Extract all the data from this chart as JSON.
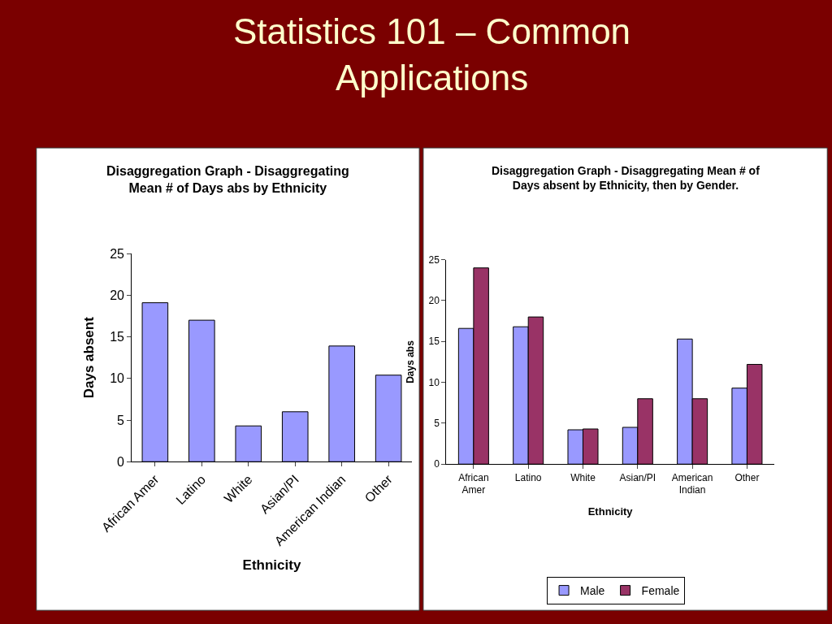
{
  "chart_data": [
    {
      "type": "bar",
      "title": "Disaggregation Graph - Disaggregating\nMean # of Days abs by Ethnicity",
      "annotations": [
        "Statistics 101 – Common\nApplications"
      ],
      "xlabel": "Ethnicity",
      "ylabel": "Days absent",
      "categories": [
        "African Amer",
        "Latino",
        "White",
        "Asian/PI",
        "American Indian",
        "Other"
      ],
      "values": [
        19.1,
        17.0,
        4.3,
        6.0,
        13.9,
        10.4
      ],
      "color": "#9999ff",
      "ylim": [
        0,
        25
      ],
      "yticks": [
        0,
        5,
        10,
        15,
        20,
        25
      ],
      "legend": false
    },
    {
      "type": "bar",
      "title": "Disaggregation Graph - Disaggregating Mean # of\nDays absent by Ethnicity, then by Gender.",
      "xlabel": "Ethnicity",
      "ylabel": "Days abs",
      "categories": [
        "African Amer",
        "Latino",
        "White",
        "Asian/PI",
        "American Indian",
        "Other"
      ],
      "series": [
        {
          "name": "Male",
          "color": "#9999ff",
          "values": [
            16.6,
            16.8,
            4.2,
            4.5,
            15.3,
            9.3
          ]
        },
        {
          "name": "Female",
          "color": "#993366",
          "values": [
            24.0,
            18.0,
            4.3,
            8.0,
            8.0,
            12.2
          ]
        }
      ],
      "ylim": [
        0,
        25
      ],
      "yticks": [
        0,
        5,
        10,
        15,
        20,
        25
      ],
      "legend": "bottom"
    }
  ]
}
